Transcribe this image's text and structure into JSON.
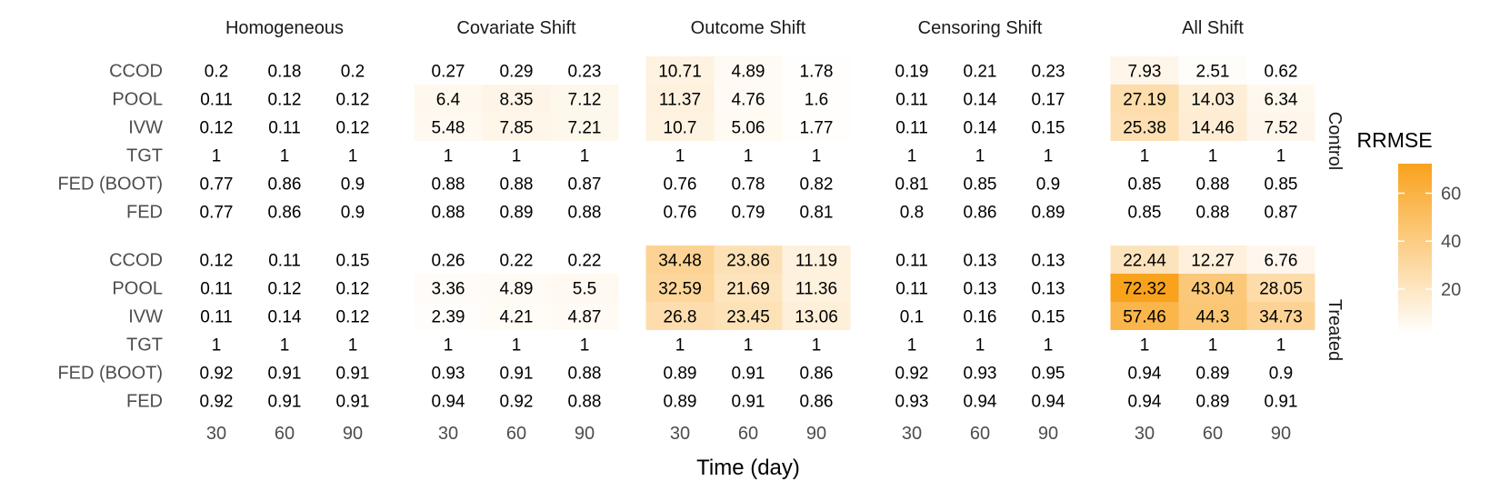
{
  "chart_data": {
    "type": "heatmap",
    "x_label": "Time (day)",
    "x_ticks": [
      "30",
      "60",
      "90"
    ],
    "panels": [
      "Homogeneous",
      "Covariate Shift",
      "Outcome Shift",
      "Censoring Shift",
      "All Shift"
    ],
    "facet_rows": [
      "Control",
      "Treated"
    ],
    "row_labels": [
      "CCOD",
      "POOL",
      "IVW",
      "TGT",
      "FED (BOOT)",
      "FED"
    ],
    "legend": {
      "title": "RRMSE",
      "ticks": [
        60,
        40,
        20
      ],
      "min": 1,
      "max": 72.32,
      "low_color": "#ffffff",
      "high_color": "#f9a21c"
    },
    "values": {
      "Control": [
        [
          [
            "0.2",
            "0.18",
            "0.2"
          ],
          [
            "0.27",
            "0.29",
            "0.23"
          ],
          [
            "10.71",
            "4.89",
            "1.78"
          ],
          [
            "0.19",
            "0.21",
            "0.23"
          ],
          [
            "7.93",
            "2.51",
            "0.62"
          ]
        ],
        [
          [
            "0.11",
            "0.12",
            "0.12"
          ],
          [
            "6.4",
            "8.35",
            "7.12"
          ],
          [
            "11.37",
            "4.76",
            "1.6"
          ],
          [
            "0.11",
            "0.14",
            "0.17"
          ],
          [
            "27.19",
            "14.03",
            "6.34"
          ]
        ],
        [
          [
            "0.12",
            "0.11",
            "0.12"
          ],
          [
            "5.48",
            "7.85",
            "7.21"
          ],
          [
            "10.7",
            "5.06",
            "1.77"
          ],
          [
            "0.11",
            "0.14",
            "0.15"
          ],
          [
            "25.38",
            "14.46",
            "7.52"
          ]
        ],
        [
          [
            "1",
            "1",
            "1"
          ],
          [
            "1",
            "1",
            "1"
          ],
          [
            "1",
            "1",
            "1"
          ],
          [
            "1",
            "1",
            "1"
          ],
          [
            "1",
            "1",
            "1"
          ]
        ],
        [
          [
            "0.77",
            "0.86",
            "0.9"
          ],
          [
            "0.88",
            "0.88",
            "0.87"
          ],
          [
            "0.76",
            "0.78",
            "0.82"
          ],
          [
            "0.81",
            "0.85",
            "0.9"
          ],
          [
            "0.85",
            "0.88",
            "0.85"
          ]
        ],
        [
          [
            "0.77",
            "0.86",
            "0.9"
          ],
          [
            "0.88",
            "0.89",
            "0.88"
          ],
          [
            "0.76",
            "0.79",
            "0.81"
          ],
          [
            "0.8",
            "0.86",
            "0.89"
          ],
          [
            "0.85",
            "0.88",
            "0.87"
          ]
        ]
      ],
      "Treated": [
        [
          [
            "0.12",
            "0.11",
            "0.15"
          ],
          [
            "0.26",
            "0.22",
            "0.22"
          ],
          [
            "34.48",
            "23.86",
            "11.19"
          ],
          [
            "0.11",
            "0.13",
            "0.13"
          ],
          [
            "22.44",
            "12.27",
            "6.76"
          ]
        ],
        [
          [
            "0.11",
            "0.12",
            "0.12"
          ],
          [
            "3.36",
            "4.89",
            "5.5"
          ],
          [
            "32.59",
            "21.69",
            "11.36"
          ],
          [
            "0.11",
            "0.13",
            "0.13"
          ],
          [
            "72.32",
            "43.04",
            "28.05"
          ]
        ],
        [
          [
            "0.11",
            "0.14",
            "0.12"
          ],
          [
            "2.39",
            "4.21",
            "4.87"
          ],
          [
            "26.8",
            "23.45",
            "13.06"
          ],
          [
            "0.1",
            "0.16",
            "0.15"
          ],
          [
            "57.46",
            "44.3",
            "34.73"
          ]
        ],
        [
          [
            "1",
            "1",
            "1"
          ],
          [
            "1",
            "1",
            "1"
          ],
          [
            "1",
            "1",
            "1"
          ],
          [
            "1",
            "1",
            "1"
          ],
          [
            "1",
            "1",
            "1"
          ]
        ],
        [
          [
            "0.92",
            "0.91",
            "0.91"
          ],
          [
            "0.93",
            "0.91",
            "0.88"
          ],
          [
            "0.89",
            "0.91",
            "0.86"
          ],
          [
            "0.92",
            "0.93",
            "0.95"
          ],
          [
            "0.94",
            "0.89",
            "0.9"
          ]
        ],
        [
          [
            "0.92",
            "0.91",
            "0.91"
          ],
          [
            "0.94",
            "0.92",
            "0.88"
          ],
          [
            "0.89",
            "0.91",
            "0.86"
          ],
          [
            "0.93",
            "0.94",
            "0.94"
          ],
          [
            "0.94",
            "0.89",
            "0.91"
          ]
        ]
      ]
    }
  }
}
